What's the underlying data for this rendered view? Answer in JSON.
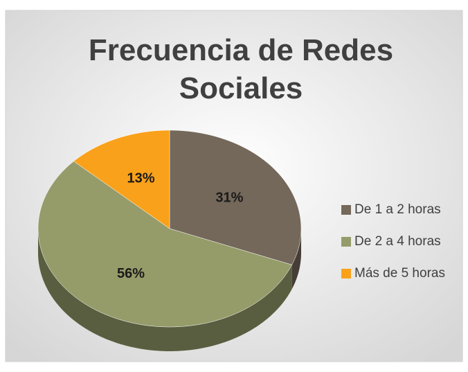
{
  "chart_data": {
    "type": "pie",
    "title": "Frecuencia de Redes Sociales",
    "categories": [
      "De 1 a 2 horas",
      "De 2 a 4 horas",
      "Más de 5 horas"
    ],
    "values": [
      31,
      56,
      13
    ],
    "value_labels": [
      "31%",
      "56%",
      "13%"
    ],
    "colors": [
      "#74685a",
      "#959c6a",
      "#f9a11b"
    ],
    "legend": "right"
  }
}
